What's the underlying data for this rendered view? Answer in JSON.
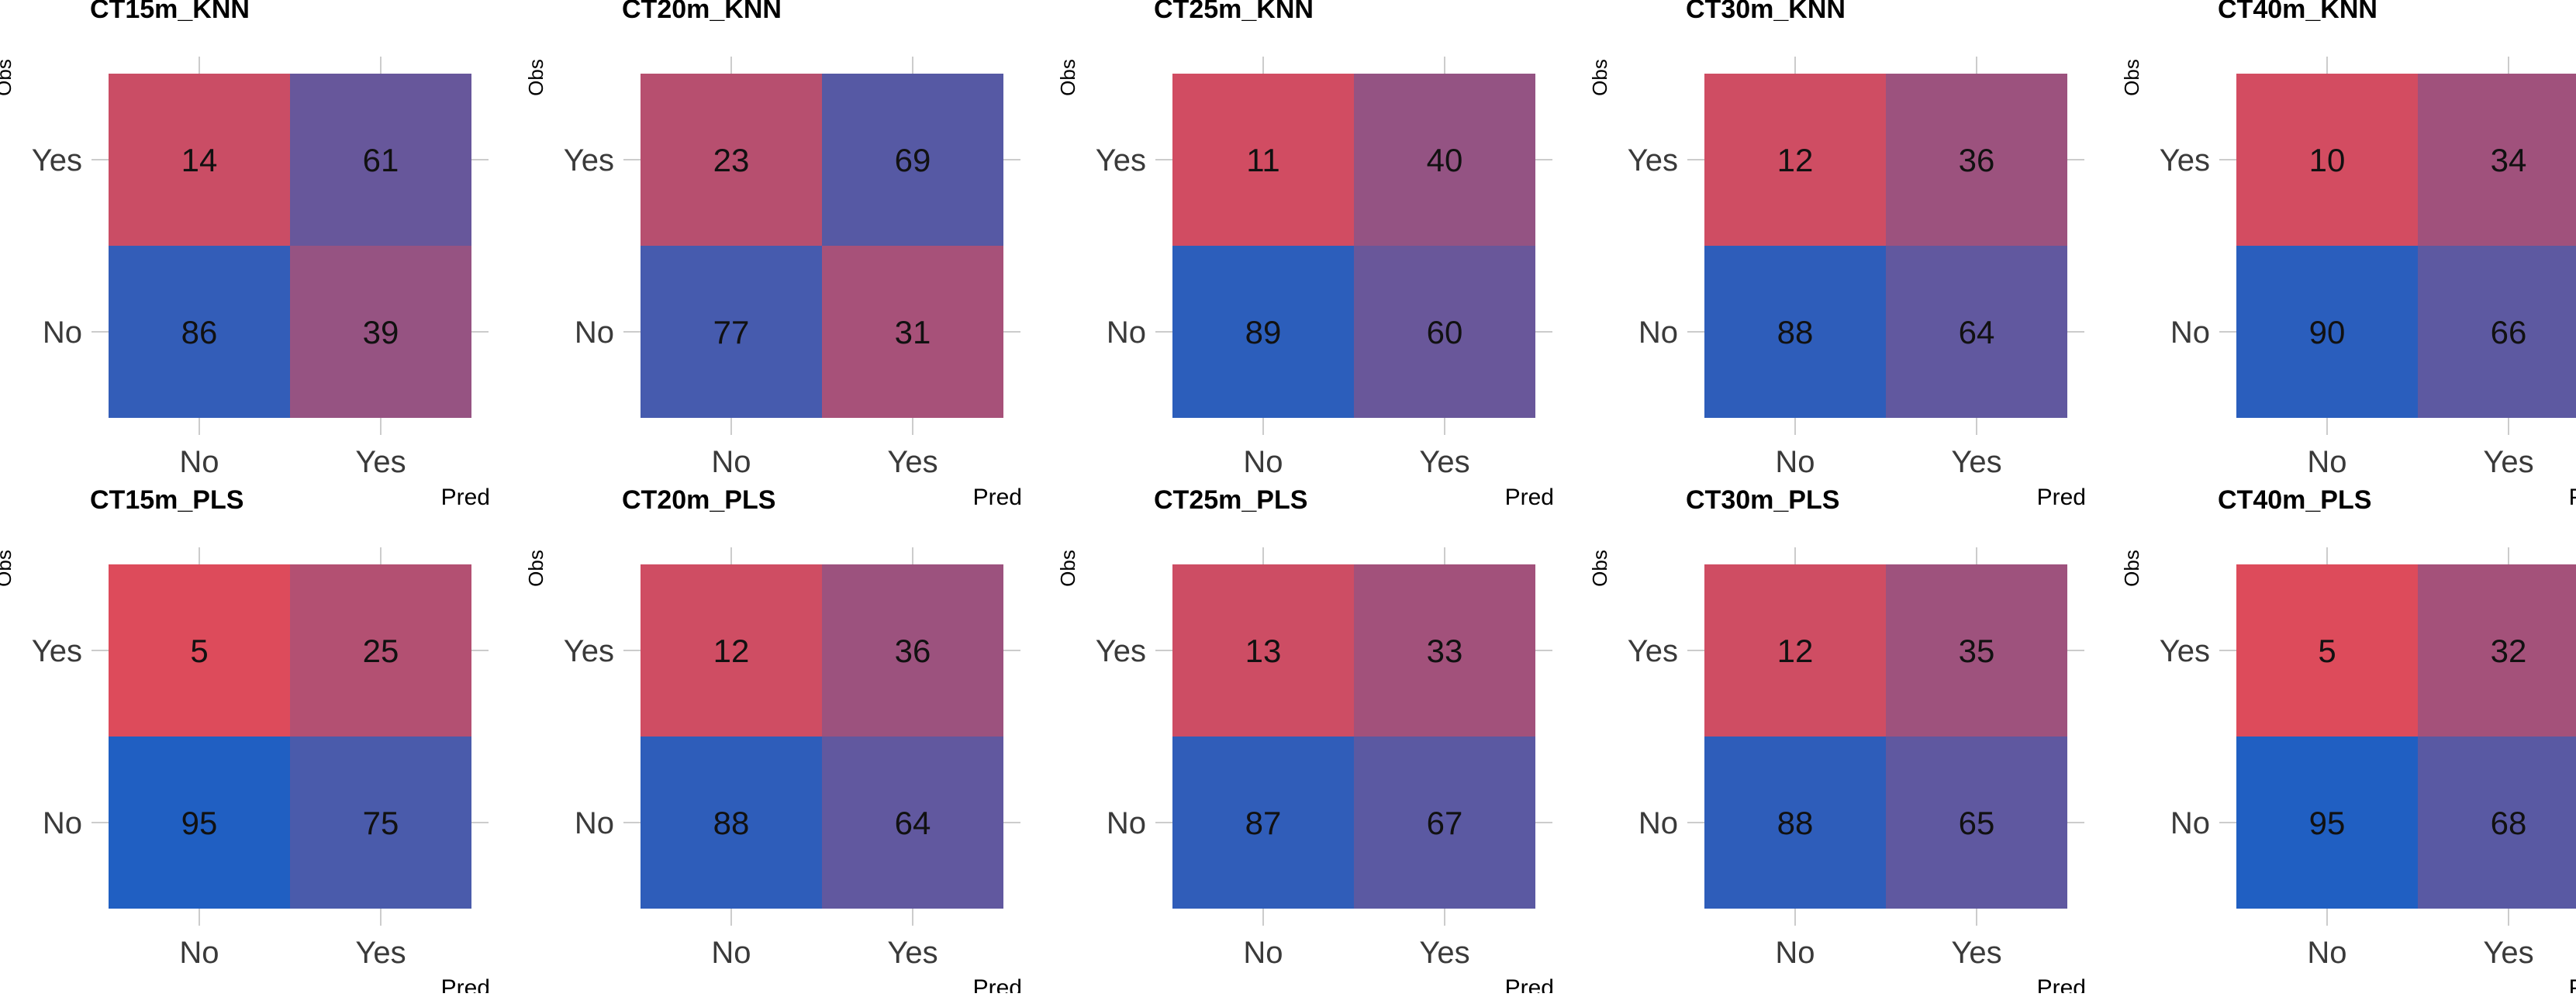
{
  "chart_data": {
    "type": "heatmap",
    "x_axis_label": "Pred",
    "y_axis_label": "Obs",
    "x_categories": [
      "No",
      "Yes"
    ],
    "y_categories": [
      "Yes",
      "No"
    ],
    "color_high": "#1560c8",
    "color_low": "#e84a55",
    "panels": [
      {
        "title": "CT15m_KNN",
        "cells": {
          "yes_no": 14,
          "yes_yes": 61,
          "no_no": 86,
          "no_yes": 39
        }
      },
      {
        "title": "CT20m_KNN",
        "cells": {
          "yes_no": 23,
          "yes_yes": 69,
          "no_no": 77,
          "no_yes": 31
        }
      },
      {
        "title": "CT25m_KNN",
        "cells": {
          "yes_no": 11,
          "yes_yes": 40,
          "no_no": 89,
          "no_yes": 60
        }
      },
      {
        "title": "CT30m_KNN",
        "cells": {
          "yes_no": 12,
          "yes_yes": 36,
          "no_no": 88,
          "no_yes": 64
        }
      },
      {
        "title": "CT40m_KNN",
        "cells": {
          "yes_no": 10,
          "yes_yes": 34,
          "no_no": 90,
          "no_yes": 66
        }
      },
      {
        "title": "CT15m_PLS",
        "cells": {
          "yes_no": 5,
          "yes_yes": 25,
          "no_no": 95,
          "no_yes": 75
        }
      },
      {
        "title": "CT20m_PLS",
        "cells": {
          "yes_no": 12,
          "yes_yes": 36,
          "no_no": 88,
          "no_yes": 64
        }
      },
      {
        "title": "CT25m_PLS",
        "cells": {
          "yes_no": 13,
          "yes_yes": 33,
          "no_no": 87,
          "no_yes": 67
        }
      },
      {
        "title": "CT30m_PLS",
        "cells": {
          "yes_no": 12,
          "yes_yes": 35,
          "no_no": 88,
          "no_yes": 65
        }
      },
      {
        "title": "CT40m_PLS",
        "cells": {
          "yes_no": 5,
          "yes_yes": 32,
          "no_no": 95,
          "no_yes": 68
        }
      }
    ]
  }
}
